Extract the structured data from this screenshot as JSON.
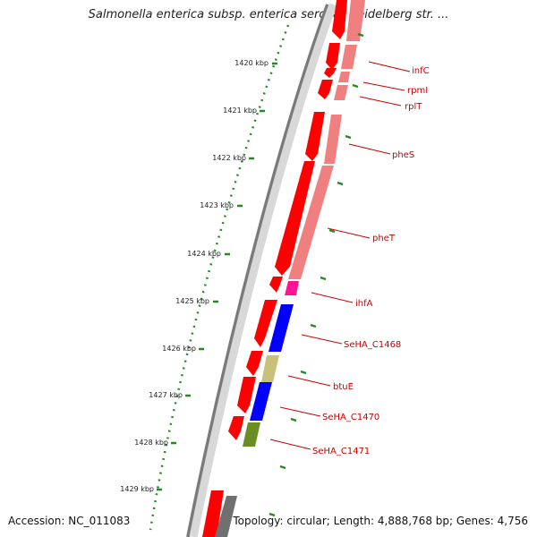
{
  "title": "Salmonella enterica subsp. enterica serovar Heidelberg str. ...",
  "footer": {
    "accession": "Accession: NC_011083",
    "info": "Topology: circular; Length: 4,888,768 bp; Genes: 4,756"
  },
  "ticks": [
    "1420 kbp",
    "1421 kbp",
    "1422 kbp",
    "1423 kbp",
    "1424 kbp",
    "1425 kbp",
    "1426 kbp",
    "1427 kbp",
    "1428 kbp",
    "1429 kbp"
  ],
  "genes": [
    "infC",
    "rpmI",
    "rplT",
    "pheS",
    "pheT",
    "ihfA",
    "SeHA_C1468",
    "btuE",
    "SeHA_C1470",
    "SeHA_C1471"
  ],
  "colors": {
    "cds": "#ff0000",
    "cds_light": "#f08080",
    "blue": "#0000ff",
    "khaki": "#c8bf78",
    "olive": "#6b8e23",
    "magenta": "#ff1493",
    "tick_green": "#228b22",
    "backbone": "#888888",
    "label": "#cc0000"
  }
}
